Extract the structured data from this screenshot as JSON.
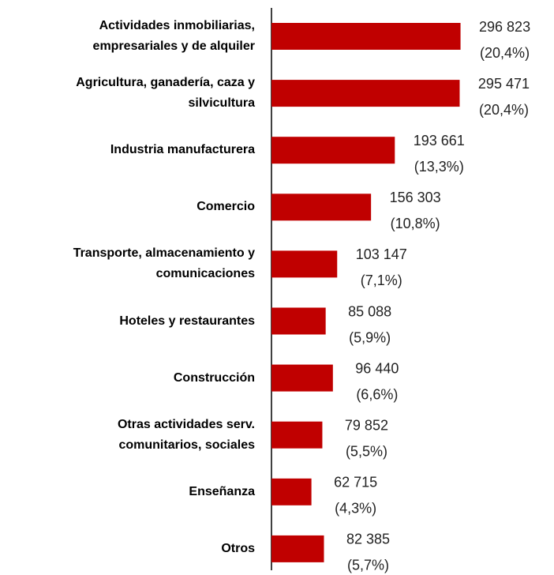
{
  "chart_data": {
    "type": "hbar",
    "categories": [
      "Actividades inmobiliarias,\nempresariales y de alquiler",
      "Agricultura, ganadería, caza y\nsilvicultura",
      "Industria manufacturera",
      "Comercio",
      "Transporte, almacenamiento y\ncomunicaciones",
      "Hoteles y restaurantes",
      "Construcción",
      "Otras actividades serv.\ncomunitarios, sociales",
      "Enseñanza",
      "Otros"
    ],
    "values": [
      296823,
      295471,
      193661,
      156303,
      103147,
      85088,
      96440,
      79852,
      62715,
      82385
    ],
    "value_labels": [
      "296 823",
      "295 471",
      "193 661",
      "156 303",
      "103 147",
      "85 088",
      "96 440",
      "79 852",
      "62 715",
      "82 385"
    ],
    "share_labels": [
      "(20,4%)",
      "(20,4%)",
      "(13,3%)",
      "(10,8%)",
      "(7,1%)",
      "(5,9%)",
      "(6,6%)",
      "(5,5%)",
      "(4,3%)",
      "(5,7%)"
    ],
    "color": "#c00000",
    "xlim": [
      0,
      368000
    ]
  }
}
